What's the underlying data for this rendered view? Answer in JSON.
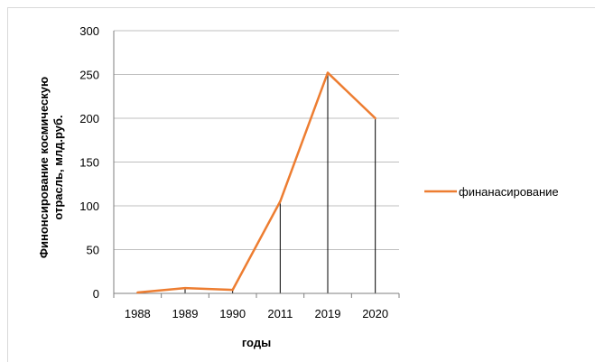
{
  "chart_data": {
    "type": "line",
    "categories": [
      "1988",
      "1989",
      "1990",
      "2011",
      "2019",
      "2020"
    ],
    "series": [
      {
        "name": "финанасирование",
        "values": [
          1,
          6,
          4,
          105,
          252,
          200
        ]
      }
    ],
    "xlabel": "годы",
    "ylabel": "Финонсирование космическую отрасль, млд.руб.",
    "ylim": [
      0,
      300
    ],
    "yticks": [
      0,
      50,
      100,
      150,
      200,
      250,
      300
    ],
    "grid": true,
    "drop_lines": true,
    "legend_position": "right",
    "colors": {
      "series": "#ed7d31",
      "grid": "#bfbfbf",
      "axis": "#7f7f7f",
      "drop_line": "#000000"
    }
  }
}
